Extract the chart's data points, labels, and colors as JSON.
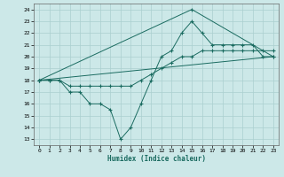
{
  "xlabel": "Humidex (Indice chaleur)",
  "bg_color": "#cce8e8",
  "grid_color": "#aacfcf",
  "line_color": "#1a6b60",
  "xlim": [
    -0.5,
    23.5
  ],
  "ylim": [
    12.5,
    24.5
  ],
  "yticks": [
    13,
    14,
    15,
    16,
    17,
    18,
    19,
    20,
    21,
    22,
    23,
    24
  ],
  "xticks": [
    0,
    1,
    2,
    3,
    4,
    5,
    6,
    7,
    8,
    9,
    10,
    11,
    12,
    13,
    14,
    15,
    16,
    17,
    18,
    19,
    20,
    21,
    22,
    23
  ],
  "lines": [
    {
      "x": [
        0,
        1,
        2,
        3,
        4,
        5,
        6,
        7,
        8,
        9,
        10,
        11,
        12,
        13,
        14,
        15,
        16,
        17,
        18,
        19,
        20,
        21,
        22,
        23
      ],
      "y": [
        18,
        18,
        18,
        17,
        17,
        16,
        16,
        15.5,
        13,
        14,
        16,
        18,
        20,
        20.5,
        22,
        23,
        22,
        21,
        21,
        21,
        21,
        21,
        20,
        20
      ],
      "marker": true
    },
    {
      "x": [
        0,
        1,
        2,
        3,
        4,
        5,
        6,
        7,
        8,
        9,
        10,
        11,
        12,
        13,
        14,
        15,
        16,
        17,
        18,
        19,
        20,
        21,
        22,
        23
      ],
      "y": [
        18,
        18,
        18,
        17.5,
        17.5,
        17.5,
        17.5,
        17.5,
        17.5,
        17.5,
        18,
        18.5,
        19,
        19.5,
        20,
        20,
        20.5,
        20.5,
        20.5,
        20.5,
        20.5,
        20.5,
        20.5,
        20.5
      ],
      "marker": true
    },
    {
      "x": [
        0,
        23
      ],
      "y": [
        18,
        20
      ],
      "marker": false
    },
    {
      "x": [
        0,
        15,
        23
      ],
      "y": [
        18,
        24,
        20
      ],
      "marker": true
    }
  ]
}
